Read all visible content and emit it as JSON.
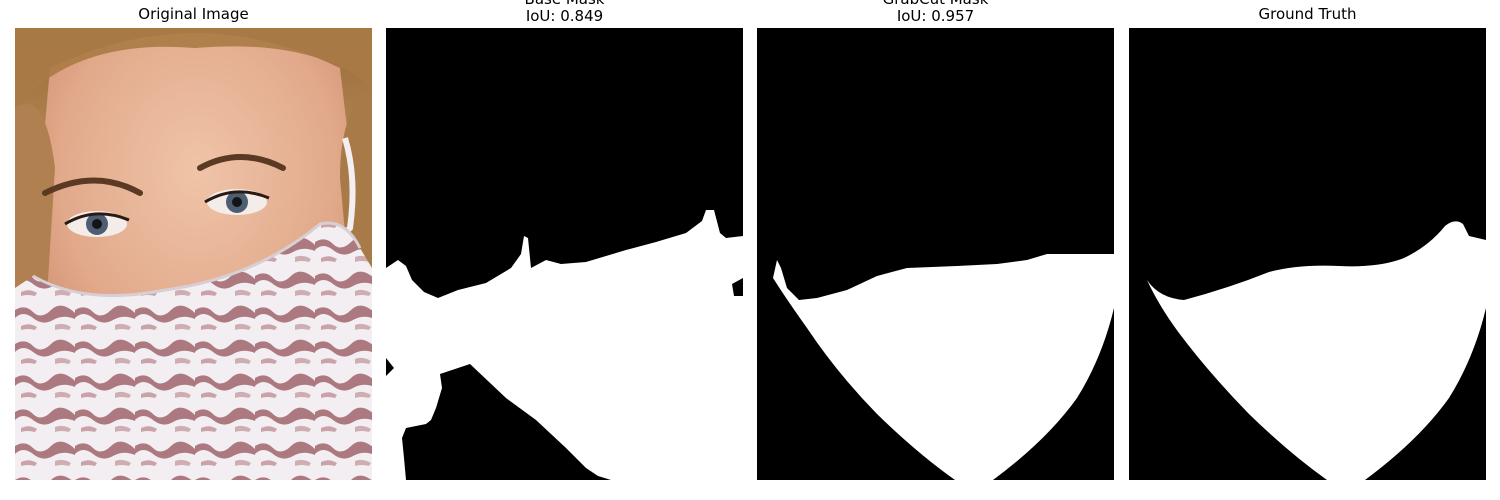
{
  "panels": [
    {
      "id": "original",
      "title_lines": [
        "Original Image"
      ],
      "content": "photo"
    },
    {
      "id": "base-mask",
      "title_lines": [
        "Base Mask",
        "IoU: 0.849"
      ],
      "content": "mask",
      "iou": 0.849
    },
    {
      "id": "grabcut-mask",
      "title_lines": [
        "GrabCut Mask",
        "IoU: 0.957"
      ],
      "content": "mask",
      "iou": 0.957
    },
    {
      "id": "ground-truth",
      "title_lines": [
        "Ground Truth"
      ],
      "content": "mask"
    }
  ],
  "colors": {
    "mask_foreground": "#ffffff",
    "mask_background": "#000000",
    "mask_pattern_stripe": "#a0656c",
    "mask_pattern_base": "#f2eef1",
    "skin": "#e3a98c",
    "hair": "#b98a55",
    "eyes": "#4d5e74"
  }
}
